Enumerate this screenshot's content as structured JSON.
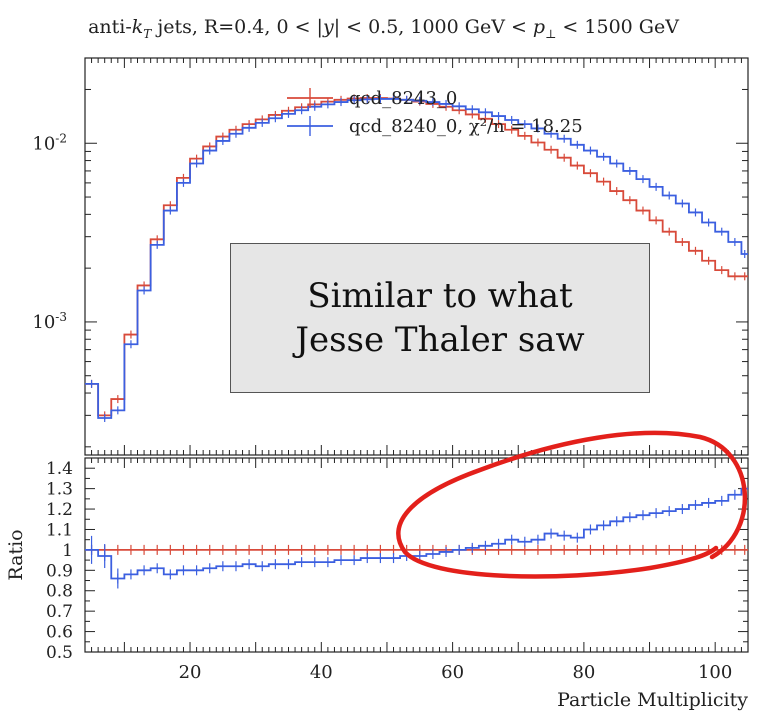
{
  "title": "anti-k_T jets, R=0.4, 0 < |y| < 0.5, 1000 GeV < p_⊥ < 1500 GeV",
  "annotation": {
    "line1": "Similar to what",
    "line2": "Jesse Thaler saw"
  },
  "colors": {
    "red": "#d84a3a",
    "blue": "#3b5fe0",
    "highlight": "#e3201b"
  },
  "chart_data": [
    {
      "type": "line",
      "panel": "main",
      "title": "anti-k_T jets, R=0.4, 0 < |y| < 0.5, 1000 GeV < p_⊥ < 1500 GeV",
      "yscale": "log",
      "xlim": [
        4,
        105
      ],
      "ylim": [
        0.00018,
        0.03
      ],
      "yticklabels": [
        "10^-2",
        "10^-3"
      ],
      "bin_edges": [
        4,
        6,
        8,
        10,
        12,
        14,
        16,
        18,
        20,
        22,
        24,
        26,
        28,
        30,
        32,
        34,
        36,
        38,
        40,
        42,
        44,
        46,
        48,
        50,
        52,
        54,
        56,
        58,
        60,
        62,
        64,
        66,
        68,
        70,
        72,
        74,
        76,
        78,
        80,
        82,
        84,
        86,
        88,
        90,
        92,
        94,
        96,
        98,
        100,
        102,
        104,
        105
      ],
      "series": [
        {
          "name": "qcd_8243_0",
          "values": [
            0.00045,
            0.0003,
            0.00037,
            0.00085,
            0.0016,
            0.0029,
            0.0045,
            0.0064,
            0.0082,
            0.0096,
            0.0109,
            0.0119,
            0.0128,
            0.0136,
            0.0144,
            0.0152,
            0.0159,
            0.0165,
            0.0171,
            0.0175,
            0.0178,
            0.0179,
            0.0179,
            0.0178,
            0.0175,
            0.0171,
            0.0166,
            0.016,
            0.0153,
            0.0145,
            0.0137,
            0.0128,
            0.0119,
            0.011,
            0.0101,
            0.0092,
            0.0083,
            0.0075,
            0.0068,
            0.0061,
            0.0054,
            0.0048,
            0.0042,
            0.0037,
            0.0032,
            0.0028,
            0.0025,
            0.0022,
            0.00195,
            0.0018,
            0.0018
          ]
        },
        {
          "name": "qcd_8240_0",
          "values": [
            0.00045,
            0.00029,
            0.00032,
            0.00075,
            0.0015,
            0.0027,
            0.0042,
            0.006,
            0.0077,
            0.0091,
            0.0103,
            0.0113,
            0.0122,
            0.013,
            0.0138,
            0.0146,
            0.0153,
            0.016,
            0.0165,
            0.017,
            0.0174,
            0.0176,
            0.0177,
            0.0177,
            0.0175,
            0.0173,
            0.017,
            0.0166,
            0.0161,
            0.0155,
            0.0149,
            0.0142,
            0.0135,
            0.0128,
            0.0121,
            0.0113,
            0.0106,
            0.0098,
            0.0091,
            0.0084,
            0.0077,
            0.007,
            0.0063,
            0.0057,
            0.0051,
            0.0046,
            0.0041,
            0.0036,
            0.0032,
            0.0028,
            0.0024
          ]
        }
      ],
      "legend": [
        {
          "name": "qcd_8243_0",
          "label": "qcd_8243_0"
        },
        {
          "name": "qcd_8240_0",
          "label": "qcd_8240_0, χ²/n = 18.25"
        }
      ]
    },
    {
      "type": "line",
      "panel": "ratio",
      "ylabel": "Ratio",
      "xlabel": "Particle Multiplicity",
      "xlim": [
        4,
        105
      ],
      "ylim": [
        0.5,
        1.45
      ],
      "xticklabels": [
        "20",
        "40",
        "60",
        "80",
        "100"
      ],
      "yticklabels": [
        "1.4",
        "1.3",
        "1.2",
        "1.1",
        "1",
        "0.9",
        "0.8",
        "0.7",
        "0.6",
        "0.5"
      ],
      "series": [
        {
          "name": "qcd_8243_0",
          "values": [
            1.0
          ]
        },
        {
          "name": "qcd_8240_0",
          "values": [
            1.0,
            0.97,
            0.86,
            0.88,
            0.9,
            0.91,
            0.88,
            0.9,
            0.9,
            0.91,
            0.92,
            0.92,
            0.93,
            0.92,
            0.93,
            0.93,
            0.94,
            0.94,
            0.94,
            0.95,
            0.95,
            0.96,
            0.96,
            0.96,
            0.97,
            0.97,
            0.98,
            0.99,
            1.0,
            1.01,
            1.02,
            1.03,
            1.05,
            1.04,
            1.05,
            1.08,
            1.07,
            1.06,
            1.1,
            1.12,
            1.14,
            1.16,
            1.17,
            1.18,
            1.19,
            1.2,
            1.22,
            1.23,
            1.24,
            1.27,
            1.3
          ]
        }
      ]
    }
  ]
}
